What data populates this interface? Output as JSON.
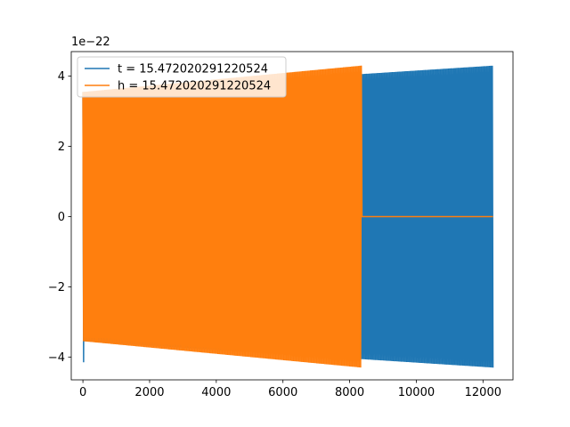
{
  "chart_data": {
    "type": "line",
    "title": "",
    "xlabel": "",
    "ylabel": "",
    "offset_text": "1e−22",
    "xlim": [
      -350,
      12900
    ],
    "ylim": [
      -4.65,
      4.7
    ],
    "y_scale_exponent": -22,
    "x_ticks": [
      0,
      2000,
      4000,
      6000,
      8000,
      10000,
      12000
    ],
    "y_ticks": [
      -4,
      -2,
      0,
      2,
      4
    ],
    "x_tick_labels": [
      "0",
      "2000",
      "4000",
      "6000",
      "8000",
      "10000",
      "12000"
    ],
    "y_tick_labels": [
      "−4",
      "−2",
      "0",
      "2",
      "4"
    ],
    "legend_position": "top-left",
    "grid": false,
    "series": [
      {
        "name": "t = 15.472020291220524",
        "color": "#1f77b4",
        "x_start": 0,
        "x_end": 12300,
        "amplitude_start": 3.55,
        "amplitude_end": 4.3,
        "initial_min": -4.15,
        "oscillation": "dense"
      },
      {
        "name": "h = 15.472020291220524",
        "color": "#ff7f0e",
        "x_start": 0,
        "x_end": 8350,
        "amplitude_start": 3.55,
        "amplitude_end": 4.3,
        "flat_after": 8370,
        "flat_until": 12300,
        "flat_value": 0,
        "oscillation": "dense"
      }
    ]
  }
}
